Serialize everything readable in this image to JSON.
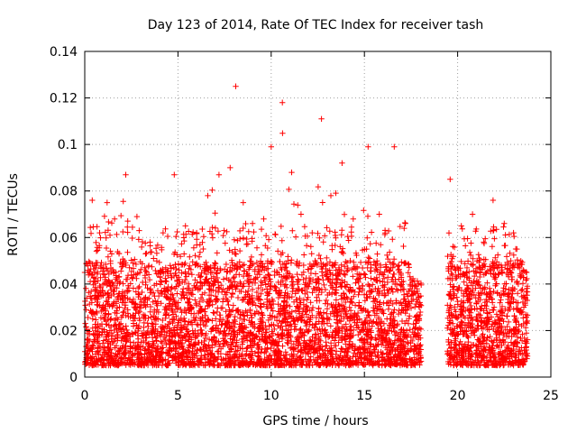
{
  "chart_data": {
    "type": "scatter",
    "title": "Day 123 of 2014, Rate Of TEC Index for receiver tash",
    "xlabel": "GPS time / hours",
    "ylabel": "ROTI / TECUs",
    "xlim": [
      0,
      25
    ],
    "ylim": [
      0,
      0.14
    ],
    "xticks": [
      0,
      5,
      10,
      15,
      20,
      25
    ],
    "xtick_labels": [
      "0",
      "5",
      "10",
      "15",
      "20",
      "25"
    ],
    "yticks": [
      0,
      0.02,
      0.04,
      0.06,
      0.08,
      0.1,
      0.12,
      0.14
    ],
    "ytick_labels": [
      "0",
      "0.02",
      "0.04",
      "0.06",
      "0.08",
      "0.1",
      "0.12",
      "0.14"
    ],
    "grid": true,
    "marker": "+",
    "color": "#ff0000",
    "gap_hours": [
      18.05,
      19.45
    ],
    "data_range_hours": [
      0,
      23.75
    ],
    "series": [
      {
        "name": "ROTI",
        "envelope_upper": [
          [
            0.0,
            0.045
          ],
          [
            0.4,
            0.076
          ],
          [
            0.8,
            0.062
          ],
          [
            1.2,
            0.075
          ],
          [
            1.6,
            0.068
          ],
          [
            2.2,
            0.087
          ],
          [
            2.8,
            0.069
          ],
          [
            3.5,
            0.058
          ],
          [
            4.2,
            0.062
          ],
          [
            4.8,
            0.087
          ],
          [
            5.4,
            0.065
          ],
          [
            6.0,
            0.062
          ],
          [
            6.6,
            0.078
          ],
          [
            7.2,
            0.087
          ],
          [
            7.8,
            0.09
          ],
          [
            8.1,
            0.125
          ],
          [
            8.5,
            0.075
          ],
          [
            9.0,
            0.066
          ],
          [
            9.6,
            0.068
          ],
          [
            10.0,
            0.099
          ],
          [
            10.6,
            0.118
          ],
          [
            11.1,
            0.088
          ],
          [
            11.6,
            0.07
          ],
          [
            12.2,
            0.062
          ],
          [
            12.7,
            0.111
          ],
          [
            13.2,
            0.078
          ],
          [
            13.8,
            0.092
          ],
          [
            14.4,
            0.068
          ],
          [
            15.2,
            0.099
          ],
          [
            15.8,
            0.07
          ],
          [
            16.6,
            0.099
          ],
          [
            17.2,
            0.066
          ],
          [
            17.9,
            0.04
          ],
          [
            19.6,
            0.085
          ],
          [
            20.2,
            0.065
          ],
          [
            20.8,
            0.07
          ],
          [
            21.4,
            0.058
          ],
          [
            21.9,
            0.076
          ],
          [
            22.5,
            0.066
          ],
          [
            23.0,
            0.062
          ],
          [
            23.7,
            0.045
          ]
        ],
        "typical_range": [
          0.005,
          0.06
        ]
      }
    ]
  }
}
